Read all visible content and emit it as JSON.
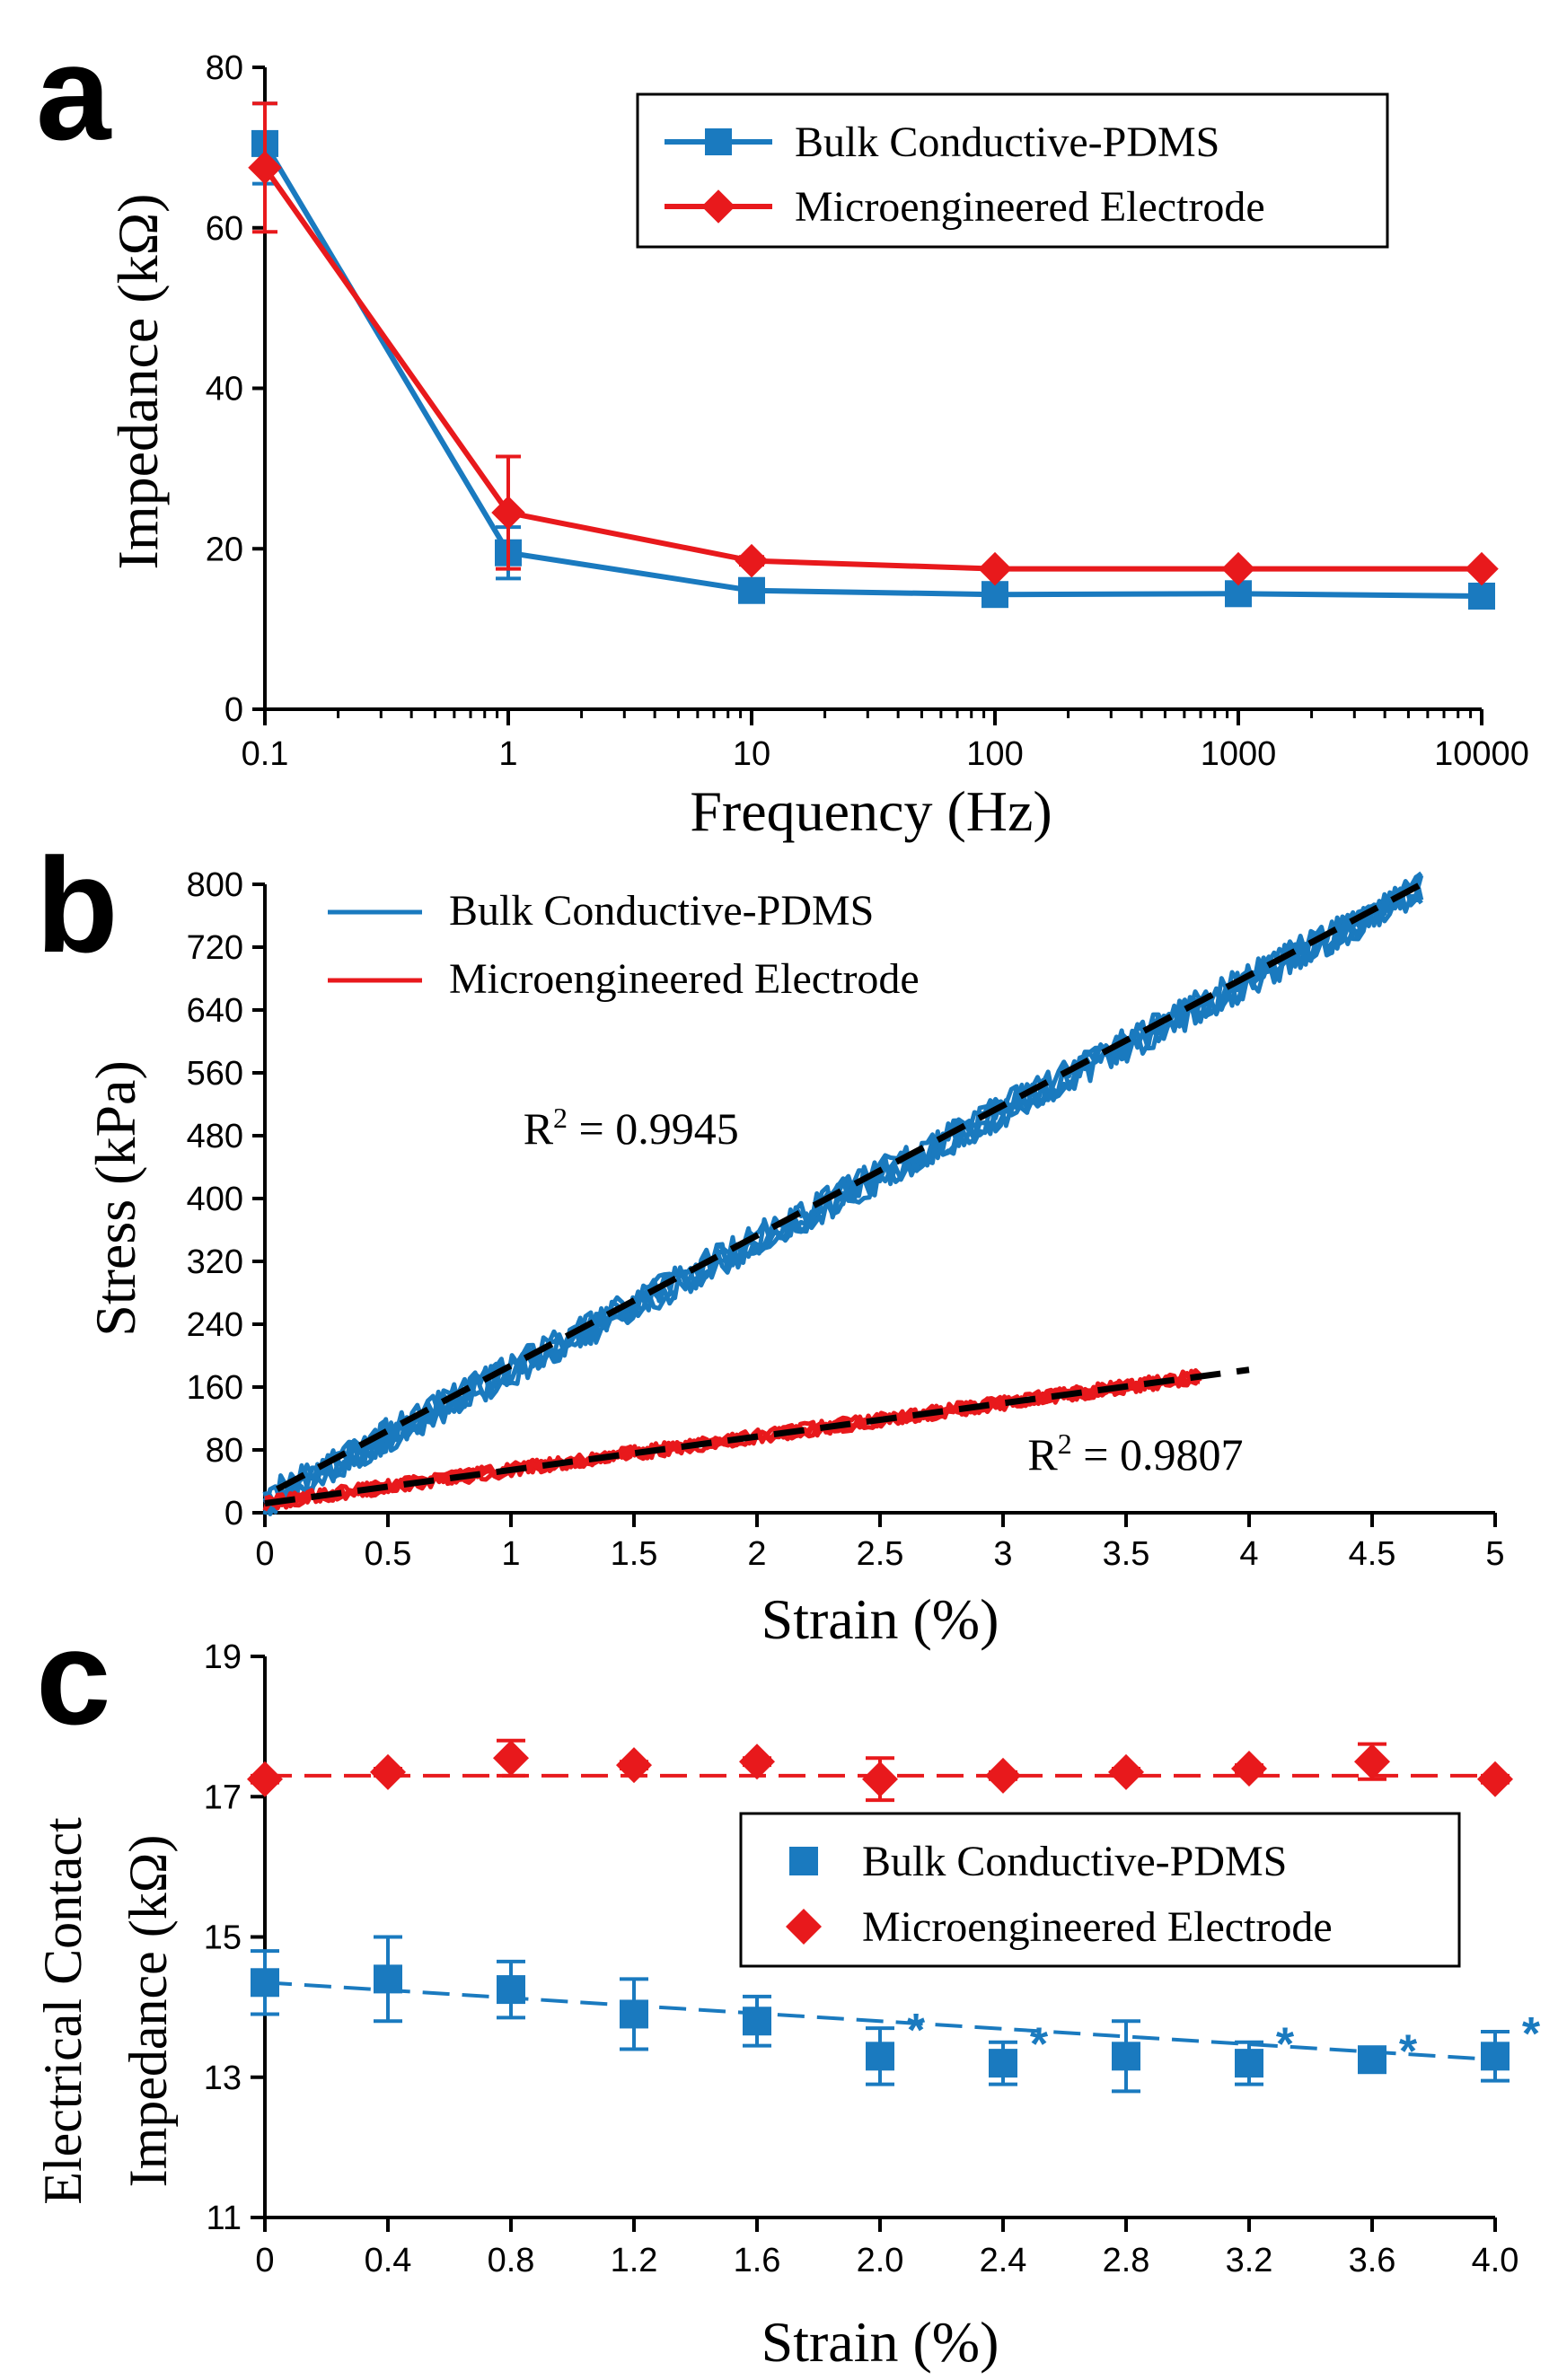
{
  "colors": {
    "blue": "#1a7abf",
    "red": "#e8191c",
    "black": "#000000"
  },
  "chart_data": [
    {
      "panel": "a",
      "type": "line",
      "xscale": "log",
      "xlabel": "Frequency (Hz)",
      "ylabel": "Impedance (kΩ)",
      "ylim": [
        0,
        80
      ],
      "xlim": [
        0.1,
        10000
      ],
      "xticks": [
        0.1,
        1,
        10,
        100,
        1000,
        10000
      ],
      "xtick_labels": [
        "0.1",
        "1",
        "10",
        "100",
        "1000",
        "10000"
      ],
      "yticks": [
        0,
        20,
        40,
        60,
        80
      ],
      "legend": "top-right",
      "series": [
        {
          "name": "Bulk Conductive-PDMS",
          "color": "blue",
          "marker": "square",
          "x": [
            0.1,
            1,
            10,
            100,
            1000,
            10000
          ],
          "y": [
            70.5,
            19.5,
            14.8,
            14.3,
            14.4,
            14.1
          ],
          "err": [
            5.0,
            3.2,
            0.8,
            0.6,
            0.6,
            0.6
          ]
        },
        {
          "name": "Microengineered Electrode",
          "color": "red",
          "marker": "diamond",
          "x": [
            0.1,
            1,
            10,
            100,
            1000,
            10000
          ],
          "y": [
            67.5,
            24.5,
            18.5,
            17.5,
            17.5,
            17.5
          ],
          "err": [
            8.0,
            7.0,
            0.5,
            0.3,
            0.3,
            0.3
          ]
        }
      ]
    },
    {
      "panel": "b",
      "type": "scatter",
      "xlabel": "Strain (%)",
      "ylabel": "Stress (kPa)",
      "xlim": [
        0,
        5
      ],
      "ylim": [
        0,
        800
      ],
      "xticks": [
        0,
        0.5,
        1,
        1.5,
        2,
        2.5,
        3,
        3.5,
        4,
        4.5,
        5
      ],
      "xtick_labels": [
        "0",
        "0.5",
        "1",
        "1.5",
        "2",
        "2.5",
        "3",
        "3.5",
        "4",
        "4.5",
        "5"
      ],
      "yticks": [
        0,
        80,
        160,
        240,
        320,
        400,
        480,
        560,
        640,
        720,
        800
      ],
      "legend": "top-left",
      "series": [
        {
          "name": "Bulk  Conductive-PDMS",
          "color": "blue",
          "x_range": [
            0.0,
            4.7
          ],
          "fit": [
            [
              0.05,
              30
            ],
            [
              4.7,
              800
            ]
          ]
        },
        {
          "name": "Microengineered Electrode",
          "color": "red",
          "x_range": [
            0.0,
            3.8
          ],
          "fit": [
            [
              0.0,
              12
            ],
            [
              4.0,
              182
            ]
          ]
        }
      ],
      "annotations": [
        {
          "text_pre": "R",
          "sup": "2",
          "text_post": " = 0.9945",
          "x": 1.05,
          "y": 470
        },
        {
          "text_pre": "R",
          "sup": "2",
          "text_post": " = 0.9807",
          "x": 3.1,
          "y": 55
        }
      ]
    },
    {
      "panel": "c",
      "type": "scatter",
      "xlabel": "Strain (%)",
      "ylabel_line1": "Electrical Contact",
      "ylabel_line2": "Impedance (kΩ)",
      "xlim": [
        0,
        4.0
      ],
      "ylim": [
        11,
        19
      ],
      "xticks": [
        0,
        0.4,
        0.8,
        1.2,
        1.6,
        2.0,
        2.4,
        2.8,
        3.2,
        3.6,
        4.0
      ],
      "xtick_labels": [
        "0",
        "0.4",
        "0.8",
        "1.2",
        "1.6",
        "2.0",
        "2.4",
        "2.8",
        "3.2",
        "3.6",
        "4.0"
      ],
      "yticks": [
        11,
        13,
        15,
        17,
        19
      ],
      "legend": "center-right",
      "significance_marker": "*",
      "series": [
        {
          "name": "Bulk Conductive-PDMS",
          "color": "blue",
          "marker": "square",
          "x": [
            0,
            0.4,
            0.8,
            1.2,
            1.6,
            2.0,
            2.4,
            2.8,
            3.2,
            3.6,
            4.0
          ],
          "y": [
            14.35,
            14.4,
            14.25,
            13.9,
            13.8,
            13.3,
            13.2,
            13.3,
            13.2,
            13.25,
            13.3
          ],
          "err": [
            0.45,
            0.6,
            0.4,
            0.5,
            0.35,
            0.4,
            0.3,
            0.5,
            0.3,
            0.15,
            0.35
          ],
          "significant": [
            false,
            false,
            false,
            false,
            false,
            true,
            true,
            false,
            true,
            true,
            true
          ],
          "fit": [
            [
              0,
              14.35
            ],
            [
              4.0,
              13.25
            ]
          ]
        },
        {
          "name": "Microengineered Electrode",
          "color": "red",
          "marker": "diamond",
          "x": [
            0,
            0.4,
            0.8,
            1.2,
            1.6,
            2.0,
            2.4,
            2.8,
            3.2,
            3.6,
            4.0
          ],
          "y": [
            17.25,
            17.35,
            17.55,
            17.45,
            17.5,
            17.25,
            17.3,
            17.35,
            17.4,
            17.5,
            17.25
          ],
          "err": [
            0.05,
            0.05,
            0.25,
            0.05,
            0.05,
            0.3,
            0.05,
            0.05,
            0.05,
            0.25,
            0.05
          ],
          "fit": [
            [
              0,
              17.3
            ],
            [
              4.0,
              17.3
            ]
          ]
        }
      ]
    }
  ]
}
